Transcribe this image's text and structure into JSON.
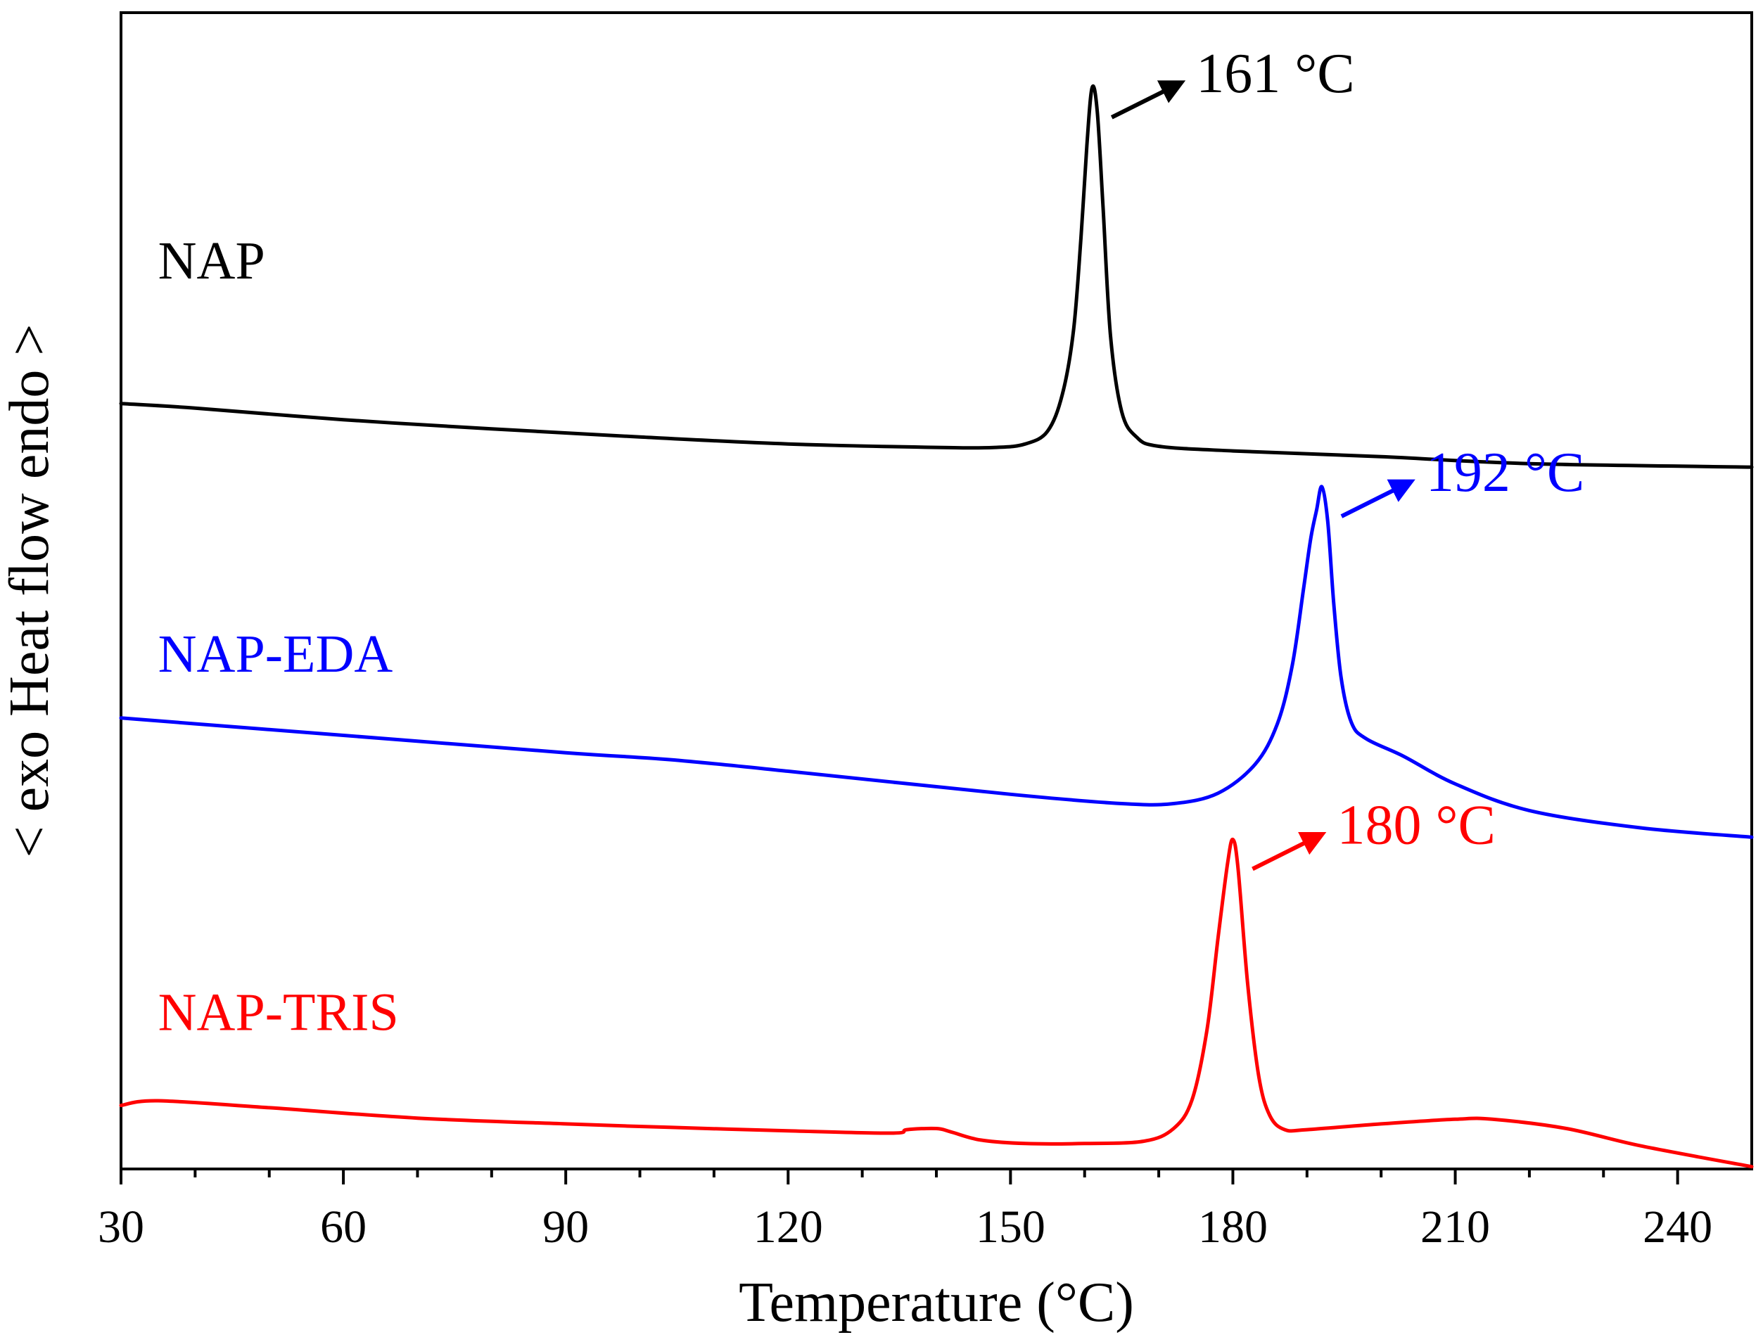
{
  "chart_data": {
    "type": "line",
    "title": "",
    "xlabel": "Temperature (°C)",
    "ylabel": "< exo Heat flow endo >",
    "xlim": [
      30,
      250
    ],
    "ylim": [
      0,
      100
    ],
    "x_ticks": [
      30,
      60,
      90,
      120,
      150,
      180,
      210,
      240
    ],
    "y_ticks_shown": false,
    "grid": false,
    "colors": {
      "axis": "#000000",
      "NAP": "#000000",
      "NAP-EDA": "#0000ff",
      "NAP-TRIS": "#ff0000"
    },
    "series": [
      {
        "name": "NAP",
        "color": "#000000",
        "label": "NAP",
        "peak": {
          "x": 161,
          "y": 93.5,
          "label": "161 °C"
        },
        "x": [
          30,
          40,
          60,
          80,
          100,
          120,
          140,
          148,
          152,
          155,
          157,
          158.5,
          159.5,
          160.3,
          161,
          161.7,
          162.5,
          163.5,
          165,
          167,
          170,
          180,
          200,
          220,
          250
        ],
        "y": [
          66.2,
          65.8,
          64.8,
          64.0,
          63.3,
          62.7,
          62.4,
          62.4,
          62.7,
          63.8,
          67.0,
          72.5,
          80.5,
          88.5,
          93.5,
          91.5,
          83.0,
          72.0,
          65.5,
          63.3,
          62.5,
          62.1,
          61.6,
          61.0,
          60.7
        ]
      },
      {
        "name": "NAP-EDA",
        "color": "#0000ff",
        "label": "NAP-EDA",
        "peak": {
          "x": 192,
          "y": 59,
          "label": "192 °C"
        },
        "x": [
          30,
          60,
          90,
          104,
          120,
          150,
          165,
          172,
          178,
          183,
          186,
          188,
          189.5,
          190.5,
          191.3,
          192,
          192.8,
          193.6,
          194.6,
          196,
          198,
          203,
          210,
          220,
          235,
          250
        ],
        "y": [
          39.0,
          37.5,
          36.0,
          35.4,
          34.4,
          32.4,
          31.6,
          31.6,
          32.5,
          35.0,
          38.5,
          43.5,
          50.0,
          54.5,
          57.0,
          59.0,
          56.0,
          49.0,
          42.5,
          38.6,
          37.2,
          35.7,
          33.3,
          31.0,
          29.5,
          28.7
        ]
      },
      {
        "name": "NAP-TRIS",
        "color": "#ff0000",
        "label": "NAP-TRIS",
        "peak": {
          "x": 180,
          "y": 28.5,
          "label": "180 °C"
        },
        "x": [
          30,
          35,
          50,
          70,
          90,
          104,
          120,
          134,
          136,
          140,
          142,
          146,
          152,
          160,
          168,
          172,
          174.5,
          176.5,
          178,
          179.3,
          180,
          180.7,
          182,
          183.5,
          185,
          187,
          190,
          200,
          210,
          215,
          225,
          235,
          250
        ],
        "y": [
          5.5,
          5.9,
          5.3,
          4.4,
          3.9,
          3.6,
          3.3,
          3.1,
          3.4,
          3.5,
          3.2,
          2.5,
          2.2,
          2.2,
          2.4,
          3.5,
          6.0,
          12.0,
          20.0,
          26.5,
          28.5,
          26.0,
          16.0,
          8.0,
          4.6,
          3.4,
          3.4,
          3.9,
          4.3,
          4.3,
          3.5,
          2.0,
          0.2
        ]
      }
    ]
  }
}
